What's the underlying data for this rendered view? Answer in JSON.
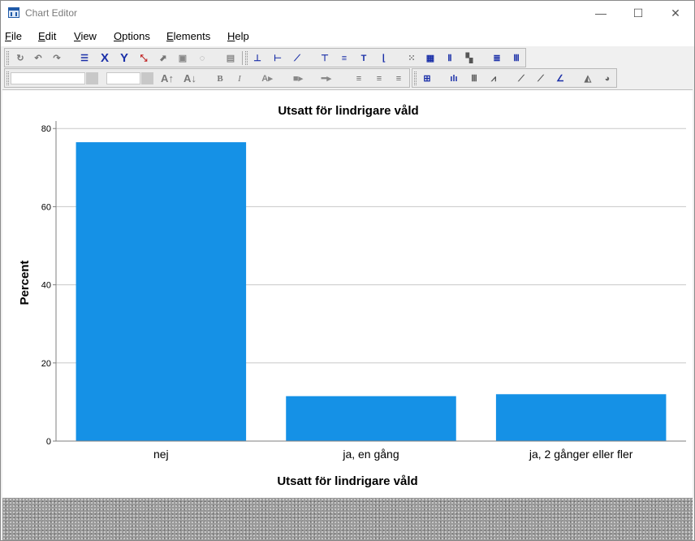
{
  "window": {
    "title": "Chart Editor",
    "controls": {
      "minimize": "—",
      "maximize": "☐",
      "close": "✕"
    }
  },
  "menu": [
    {
      "label": "File",
      "mnemonic": "F"
    },
    {
      "label": "Edit",
      "mnemonic": "E"
    },
    {
      "label": "View",
      "mnemonic": "V"
    },
    {
      "label": "Options",
      "mnemonic": "O"
    },
    {
      "label": "Elements",
      "mnemonic": "m"
    },
    {
      "label": "Help",
      "mnemonic": "H"
    }
  ],
  "toolbar_top": [
    "undo-icon",
    "back-icon",
    "forward-icon",
    "properties-icon",
    "select-x-axis-icon",
    "select-y-axis-icon",
    "rescale-icon",
    "transpose-icon",
    "frame-icon",
    "lasso-icon",
    "chart-area-icon",
    "y-axis-line-icon",
    "x-axis-line-icon",
    "diagonal-line-icon",
    "title-icon",
    "annotation-icon",
    "textbox-icon",
    "footnote-icon",
    "gridlines-icon",
    "grid-icon",
    "reference-line-icon",
    "legend-icon",
    "bar-horizontal-icon",
    "bar-vertical-icon"
  ],
  "toolbar_format": {
    "font_field": "",
    "size_field": "",
    "icons": [
      "font-size-up-icon",
      "font-size-down-icon",
      "bold-icon",
      "italic-icon",
      "text-color-icon",
      "fill-color-icon",
      "line-style-icon",
      "align-left-icon",
      "align-center-icon",
      "align-right-icon"
    ],
    "labels": {
      "bold": "B",
      "italic": "I",
      "font_up": "A",
      "font_down": "A"
    }
  },
  "toolbar_elements": [
    "data-labels-icon",
    "bar-chart-icon",
    "clustered-bar-icon",
    "line-chart-icon",
    "interpolation-icon",
    "fit-line-icon",
    "reference-line-icon",
    "area-chart-icon",
    "pie-chart-icon"
  ],
  "colors": {
    "bar": "#1591e6",
    "grid": "#c8c8c8",
    "axis": "#7f7f7f",
    "window_bg": "#f0f0f0"
  },
  "chart_data": {
    "type": "bar",
    "title": "Utsatt för lindrigare våld",
    "xlabel": "Utsatt för lindrigare våld",
    "ylabel": "Percent",
    "categories": [
      "nej",
      "ja, en gång",
      "ja, 2 gånger eller fler"
    ],
    "values": [
      76.5,
      11.5,
      12.0
    ],
    "ylim": [
      0,
      84
    ],
    "yticks": [
      0,
      20,
      40,
      60,
      80
    ],
    "grid": true,
    "legend": "none"
  }
}
